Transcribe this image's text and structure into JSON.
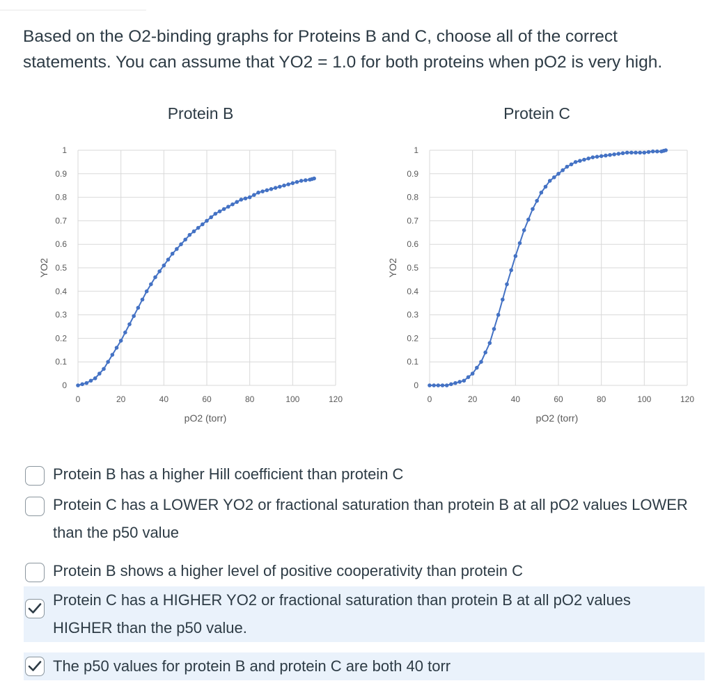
{
  "question": {
    "text": "Based on the O2-binding graphs for Proteins B and C, choose all of the correct statements. You can assume that YO2 = 1.0 for both proteins when pO2 is very high."
  },
  "charts": [
    {
      "title": "Protein B",
      "ylabel": "YO2",
      "xlabel": "pO2 (torr)",
      "color": "#4472c4",
      "x_ticks": [
        "0",
        "20",
        "40",
        "60",
        "80",
        "100",
        "120"
      ],
      "y_ticks": [
        "0",
        "0.1",
        "0.2",
        "0.3",
        "0.4",
        "0.5",
        "0.6",
        "0.7",
        "0.8",
        "0.9",
        "1"
      ]
    },
    {
      "title": "Protein C",
      "ylabel": "YO2",
      "xlabel": "pO2 (torr)",
      "color": "#4472c4",
      "x_ticks": [
        "0",
        "20",
        "40",
        "60",
        "80",
        "100",
        "120"
      ],
      "y_ticks": [
        "0",
        "0.1",
        "0.2",
        "0.3",
        "0.4",
        "0.5",
        "0.6",
        "0.7",
        "0.8",
        "0.9",
        "1"
      ]
    }
  ],
  "chart_data": [
    {
      "type": "line",
      "title": "Protein B",
      "xlabel": "pO2 (torr)",
      "ylabel": "YO2",
      "xlim": [
        0,
        120
      ],
      "ylim": [
        0,
        1
      ],
      "grid": true,
      "series": [
        {
          "x": [
            0,
            4,
            8,
            12,
            16,
            20,
            24,
            28,
            32,
            36,
            40,
            44,
            48,
            52,
            56,
            60,
            64,
            68,
            72,
            76,
            80,
            84,
            88,
            92,
            96,
            100,
            104,
            108,
            110
          ],
          "values": [
            0.0,
            0.01,
            0.03,
            0.07,
            0.13,
            0.19,
            0.26,
            0.33,
            0.4,
            0.46,
            0.51,
            0.56,
            0.6,
            0.64,
            0.67,
            0.7,
            0.73,
            0.75,
            0.77,
            0.79,
            0.8,
            0.82,
            0.83,
            0.84,
            0.85,
            0.86,
            0.87,
            0.875,
            0.88
          ]
        }
      ]
    },
    {
      "type": "line",
      "title": "Protein C",
      "xlabel": "pO2 (torr)",
      "ylabel": "YO2",
      "xlim": [
        0,
        120
      ],
      "ylim": [
        0,
        1
      ],
      "grid": true,
      "series": [
        {
          "x": [
            0,
            4,
            8,
            12,
            16,
            20,
            24,
            28,
            32,
            36,
            40,
            44,
            48,
            52,
            56,
            60,
            64,
            68,
            72,
            76,
            80,
            84,
            88,
            92,
            96,
            100,
            104,
            108,
            110
          ],
          "values": [
            0.0,
            0.0,
            0.0,
            0.01,
            0.02,
            0.05,
            0.1,
            0.18,
            0.3,
            0.43,
            0.55,
            0.66,
            0.75,
            0.82,
            0.87,
            0.9,
            0.93,
            0.95,
            0.96,
            0.97,
            0.975,
            0.98,
            0.985,
            0.99,
            0.99,
            0.99,
            0.995,
            0.995,
            1.0
          ]
        }
      ]
    }
  ],
  "options": [
    {
      "text": "Protein B has a higher Hill coefficient than protein C",
      "checked": false
    },
    {
      "text": "Protein C has a LOWER YO2 or fractional saturation than protein B at all pO2 values LOWER than the p50 value",
      "checked": false
    },
    {
      "text": "Protein B shows a higher level of positive cooperativity than protein C",
      "checked": false
    },
    {
      "text": "Protein C has a HIGHER YO2 or fractional saturation than protein B at all pO2 values HIGHER than the p50 value.",
      "checked": true
    },
    {
      "text": "The p50 values for protein B and protein C are both 40 torr",
      "checked": true
    }
  ],
  "colors": {
    "check": "#2d3b45",
    "selected_bg": "#eaf2fb",
    "series": "#4472c4"
  }
}
